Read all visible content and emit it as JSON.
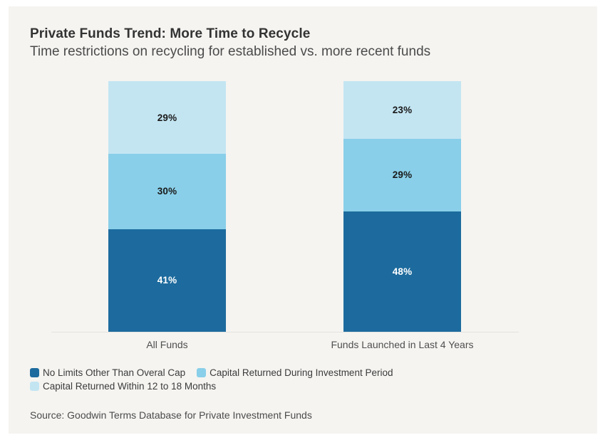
{
  "card": {
    "title": "Private Funds Trend: More Time to Recycle",
    "subtitle": "Time restrictions on recycling for established vs. more recent funds",
    "source": "Source: Goodwin Terms Database for Private Investment Funds"
  },
  "colors": {
    "card_background": "#f5f4f1",
    "page_background": "#ffffff",
    "dark_blue": "#1d6b9e",
    "medium_blue": "#89cfe9",
    "light_blue": "#c3e5f2",
    "axis_line": "#e4e3df"
  },
  "chart_data": {
    "type": "bar",
    "stacked": true,
    "orientation": "vertical",
    "title": "Private Funds Trend: More Time to Recycle",
    "subtitle": "Time restrictions on recycling for established vs. more recent funds",
    "categories": [
      "All Funds",
      "Funds Launched in Last 4 Years"
    ],
    "series": [
      {
        "name": "No Limits Other Than Overal Cap",
        "color": "#1d6b9e",
        "label_color": "#ffffff",
        "values": [
          41,
          48
        ]
      },
      {
        "name": "Capital Returned During Investment Period",
        "color": "#89cfe9",
        "label_color": "#1a1a1a",
        "values": [
          30,
          29
        ]
      },
      {
        "name": "Capital Returned Within 12 to 18 Months",
        "color": "#c3e5f2",
        "label_color": "#1a1a1a",
        "values": [
          29,
          23
        ]
      }
    ],
    "value_suffix": "%",
    "ylim": [
      0,
      100
    ],
    "data_labels": true,
    "grid": false,
    "legend_position": "bottom"
  }
}
